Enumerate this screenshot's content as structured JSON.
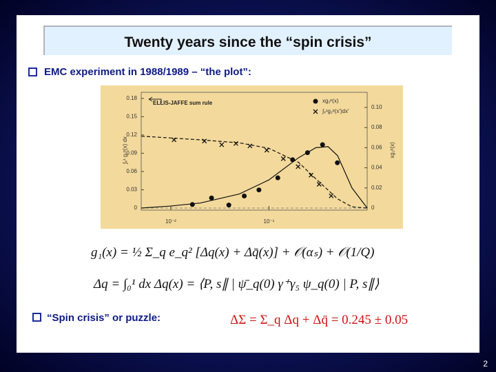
{
  "title": "Twenty years since the “spin crisis”",
  "bullets": [
    "EMC experiment in 1988/1989 – “the plot”:",
    "“Spin crisis” or puzzle:"
  ],
  "equations": [
    "g₁(x) = ½ Σ_q e_q² [Δq(x) + Δq̄(x)] + 𝒪(αₛ) + 𝒪(1/Q)",
    "Δq = ∫₀¹ dx Δq(x) = ⟨P, s∥ | ψ̄_q(0) γ⁺γ₅ ψ_q(0) | P, s∥⟩",
    "ΔΣ = Σ_q Δq + Δq̄ = 0.245 ± 0.05"
  ],
  "page_number": "2",
  "chart_data": {
    "type": "scatter",
    "annotation": "ELLIS-JAFFE sum rule",
    "ylabel": "∫ₓ¹ g₁ᵖ(x) dx",
    "y2label": "xg₁ᵖ(x)",
    "log_x": true,
    "xlim": [
      0.005,
      1
    ],
    "xticks": [
      {
        "value": 0.01,
        "label": "10⁻²"
      },
      {
        "value": 0.1,
        "label": "10⁻¹"
      }
    ],
    "ylim": [
      0,
      0.19
    ],
    "yticks": [
      0,
      0.03,
      0.06,
      0.09,
      0.12,
      0.15,
      0.18
    ],
    "y2lim": [
      0,
      0.115
    ],
    "y2ticks": [
      0,
      0.02,
      0.04,
      0.06,
      0.08,
      {
        "value": 0.1,
        "label": "0.10"
      }
    ],
    "series": [
      {
        "name": "xg₁ᵖ(x)",
        "marker": "dot",
        "axis": "y2",
        "color": "#111111",
        "x": [
          0.0166,
          0.026,
          0.039,
          0.056,
          0.079,
          0.123,
          0.174,
          0.247,
          0.351,
          0.497
        ],
        "values": [
          0.0035,
          0.01,
          0.003,
          0.012,
          0.018,
          0.03,
          0.048,
          0.055,
          0.063,
          0.045
        ]
      },
      {
        "name": "∫ₓ¹g₁ᵖ(x')dx'",
        "marker": "cross",
        "color": "#111111",
        "x": [
          0.0108,
          0.022,
          0.033,
          0.046,
          0.064,
          0.095,
          0.14,
          0.198,
          0.268,
          0.324,
          0.43
        ],
        "values": [
          0.112,
          0.11,
          0.104,
          0.106,
          0.102,
          0.095,
          0.081,
          0.068,
          0.054,
          0.039,
          0.02
        ]
      },
      {
        "marker": "line",
        "line_style": "solid",
        "axis": "y2",
        "color": "#111111",
        "x": [
          0.005,
          0.01,
          0.02,
          0.05,
          0.1,
          0.2,
          0.3,
          0.4,
          0.5,
          0.7,
          1
        ],
        "values": [
          0,
          0.002,
          0.005,
          0.014,
          0.028,
          0.05,
          0.06,
          0.061,
          0.052,
          0.02,
          0
        ]
      },
      {
        "marker": "line",
        "line_style": "dashed",
        "color": "#111111",
        "x": [
          0.005,
          0.01,
          0.02,
          0.05,
          0.1,
          0.2,
          0.3,
          0.5,
          0.7,
          1
        ],
        "values": [
          0.118,
          0.115,
          0.112,
          0.107,
          0.098,
          0.075,
          0.048,
          0.015,
          0.002,
          0
        ]
      }
    ]
  }
}
